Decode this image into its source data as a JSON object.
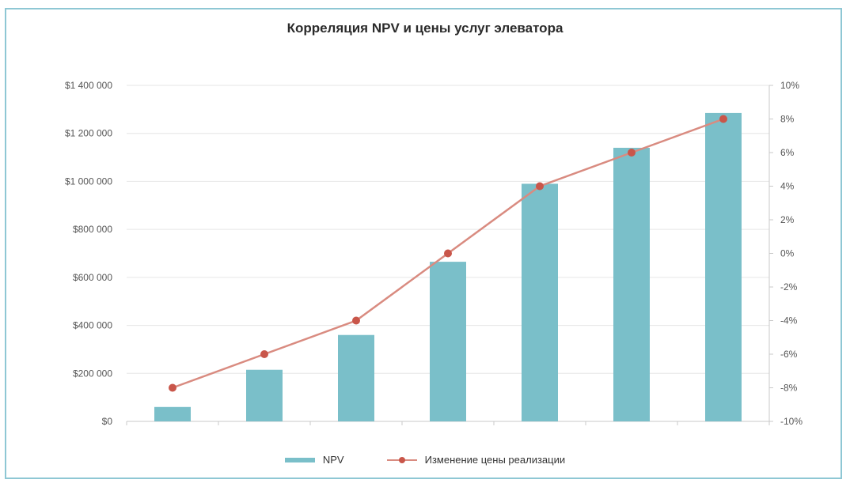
{
  "chart_data": {
    "type": "bar",
    "title": "Корреляция NPV и цены услуг элеватора",
    "categories": [
      "",
      "",
      "",
      "",
      "",
      "",
      ""
    ],
    "series": [
      {
        "name": "NPV",
        "type": "bar",
        "axis": "left",
        "values": [
          60000,
          215000,
          360000,
          665000,
          990000,
          1140000,
          1285000
        ]
      },
      {
        "name": "Изменение цены реализации",
        "type": "line",
        "axis": "right",
        "values": [
          -8,
          -6,
          -4,
          0,
          4,
          6,
          8
        ]
      }
    ],
    "y_left": {
      "min": 0,
      "max": 1400000,
      "ticks": [
        "$0",
        "$200 000",
        "$400 000",
        "$600 000",
        "$800 000",
        "$1 000 000",
        "$1 200 000",
        "$1 400 000"
      ]
    },
    "y_right": {
      "min": -10,
      "max": 10,
      "ticks": [
        "-10%",
        "-8%",
        "-6%",
        "-4%",
        "-2%",
        "0%",
        "2%",
        "4%",
        "6%",
        "8%",
        "10%"
      ]
    },
    "grid": true,
    "legend_position": "bottom",
    "colors": {
      "bar": "#7abfc9",
      "line": "#d98b80",
      "marker": "#c9564a",
      "grid": "#e6e6e6",
      "frame": "#8ec7d4"
    }
  }
}
